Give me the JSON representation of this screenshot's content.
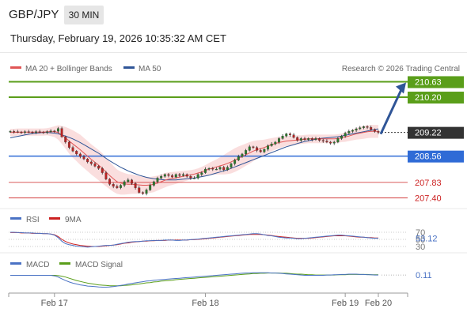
{
  "header": {
    "symbol": "GBP/JPY",
    "timeframe": "30 MIN",
    "datetime": "Thursday, February 19, 2026 10:35:32 AM CET"
  },
  "legend": {
    "ma20_label": "MA 20 + Bollinger Bands",
    "ma50_label": "MA 50",
    "ma20_color": "#e05555",
    "ma50_color": "#2f5597",
    "credit": "Research © 2026 Trading Central"
  },
  "chart_data": {
    "type": "line",
    "ylim": [
      207.3,
      210.75
    ],
    "x_ticks": [
      "Feb 17",
      "Feb 18",
      "Feb 19",
      "Feb 20"
    ],
    "price_series": {
      "close": [
        209.25,
        209.24,
        209.23,
        209.22,
        209.24,
        209.23,
        209.22,
        209.24,
        209.23,
        209.22,
        209.24,
        209.26,
        209.25,
        209.33,
        209.1,
        208.95,
        208.8,
        208.7,
        208.62,
        208.55,
        208.48,
        208.4,
        208.35,
        208.28,
        208.22,
        208.1,
        207.92,
        207.78,
        207.72,
        207.68,
        207.75,
        207.85,
        207.9,
        207.8,
        207.68,
        207.55,
        207.52,
        207.62,
        207.75,
        207.85,
        207.95,
        208.0,
        208.05,
        208.02,
        207.98,
        208.05,
        208.02,
        208.05,
        208.0,
        207.95,
        207.95,
        208.05,
        208.1,
        208.2,
        208.22,
        208.2,
        208.2,
        208.25,
        208.18,
        208.25,
        208.35,
        208.45,
        208.55,
        208.62,
        208.72,
        208.82,
        208.8,
        208.72,
        208.68,
        208.75,
        208.85,
        208.9,
        208.95,
        209.05,
        209.12,
        209.18,
        209.15,
        209.08,
        209.0,
        209.05,
        209.02,
        209.05,
        209.02,
        209.05,
        209.0,
        208.98,
        208.95,
        208.92,
        208.95,
        209.05,
        209.12,
        209.2,
        209.25,
        209.28,
        209.32,
        209.35,
        209.38,
        209.36,
        209.3,
        209.25,
        209.22
      ],
      "ma20": [
        209.22,
        209.22,
        209.23,
        209.23,
        209.23,
        209.23,
        209.23,
        209.23,
        209.23,
        209.23,
        209.24,
        209.24,
        209.24,
        209.22,
        209.15,
        209.07,
        208.98,
        208.9,
        208.82,
        208.74,
        208.65,
        208.56,
        208.47,
        208.39,
        208.31,
        208.22,
        208.12,
        208.02,
        207.93,
        207.85,
        207.81,
        207.79,
        207.78,
        207.78,
        207.77,
        207.76,
        207.75,
        207.75,
        207.76,
        207.78,
        207.81,
        207.85,
        207.89,
        207.92,
        207.94,
        207.96,
        207.98,
        208.0,
        208.02,
        208.04,
        208.06,
        208.09,
        208.12,
        208.16,
        208.2,
        208.23,
        208.26,
        208.29,
        208.32,
        208.36,
        208.4,
        208.45,
        208.5,
        208.55,
        208.6,
        208.65,
        208.7,
        208.74,
        208.77,
        208.8,
        208.84,
        208.88,
        208.91,
        208.94,
        208.96,
        208.98,
        208.99,
        209.0,
        209.01,
        209.02,
        209.03,
        209.04,
        209.04,
        209.04,
        209.04,
        209.04,
        209.04,
        209.04,
        209.04,
        209.05,
        209.07,
        209.09,
        209.12,
        209.15,
        209.18,
        209.2,
        209.22,
        209.24,
        209.25,
        209.25,
        209.25
      ],
      "ma50": [
        209.07,
        209.09,
        209.11,
        209.13,
        209.15,
        209.17,
        209.19,
        209.2,
        209.21,
        209.22,
        209.22,
        209.21,
        209.2,
        209.18,
        209.15,
        209.12,
        209.08,
        209.04,
        208.99,
        208.94,
        208.88,
        208.82,
        208.76,
        208.7,
        208.64,
        208.57,
        208.5,
        208.43,
        208.37,
        208.31,
        208.25,
        208.2,
        208.15,
        208.11,
        208.07,
        208.03,
        208.0,
        207.97,
        207.95,
        207.93,
        207.92,
        207.91,
        207.9,
        207.9,
        207.9,
        207.9,
        207.91,
        207.92,
        207.93,
        207.94,
        207.95,
        207.97,
        207.99,
        208.01,
        208.03,
        208.06,
        208.09,
        208.12,
        208.15,
        208.18,
        208.22,
        208.26,
        208.3,
        208.34,
        208.38,
        208.42,
        208.46,
        208.5,
        208.54,
        208.58,
        208.62,
        208.66,
        208.7,
        208.74,
        208.78,
        208.82,
        208.85,
        208.88,
        208.91,
        208.94,
        208.97,
        208.99,
        209.01,
        209.03,
        209.05,
        209.06,
        209.07,
        209.08,
        209.09,
        209.1,
        209.12,
        209.14,
        209.16,
        209.18,
        209.2,
        209.22,
        209.24,
        209.26,
        209.28,
        209.3,
        209.32
      ],
      "bb_width": [
        0.1,
        0.1,
        0.1,
        0.1,
        0.1,
        0.1,
        0.1,
        0.1,
        0.1,
        0.1,
        0.1,
        0.12,
        0.15,
        0.2,
        0.25,
        0.3,
        0.35,
        0.38,
        0.4,
        0.42,
        0.42,
        0.42,
        0.42,
        0.42,
        0.42,
        0.42,
        0.4,
        0.38,
        0.36,
        0.34,
        0.32,
        0.3,
        0.28,
        0.27,
        0.26,
        0.25,
        0.24,
        0.23,
        0.22,
        0.22,
        0.21,
        0.2,
        0.2,
        0.19,
        0.18,
        0.17,
        0.16,
        0.15,
        0.14,
        0.13,
        0.13,
        0.13,
        0.14,
        0.15,
        0.17,
        0.19,
        0.21,
        0.24,
        0.27,
        0.3,
        0.32,
        0.33,
        0.33,
        0.32,
        0.31,
        0.3,
        0.28,
        0.26,
        0.24,
        0.22,
        0.2,
        0.18,
        0.17,
        0.16,
        0.15,
        0.14,
        0.13,
        0.13,
        0.13,
        0.12,
        0.12,
        0.12,
        0.12,
        0.12,
        0.12,
        0.12,
        0.12,
        0.12,
        0.12,
        0.12,
        0.12,
        0.13,
        0.14,
        0.15,
        0.16,
        0.17,
        0.18,
        0.18,
        0.18,
        0.18,
        0.18
      ]
    },
    "levels": [
      {
        "value": 210.63,
        "label": "210.63",
        "kind": "resistance",
        "color": "#5a9e1a"
      },
      {
        "value": 210.2,
        "label": "210.20",
        "kind": "resistance",
        "color": "#5a9e1a"
      },
      {
        "value": 209.22,
        "label": "209.22",
        "kind": "last",
        "color": "#333333"
      },
      {
        "value": 208.56,
        "label": "208.56",
        "kind": "pivot",
        "color": "#2f6bd6"
      },
      {
        "value": 207.83,
        "label": "207.83",
        "kind": "support",
        "color": "#cc2222"
      },
      {
        "value": 207.4,
        "label": "207.40",
        "kind": "support",
        "color": "#cc2222"
      }
    ],
    "arrow": {
      "from": 209.22,
      "to": 210.63,
      "color": "#2f5597"
    },
    "rsi": {
      "label": "RSI",
      "ma_label": "9MA",
      "rsi_color": "#4a72c4",
      "ma_color": "#cc2222",
      "levels": [
        "70",
        "50",
        "30"
      ],
      "last": "53.12",
      "values": [
        70,
        70,
        69,
        69,
        68,
        68,
        68,
        67,
        67,
        66,
        66,
        65,
        62,
        55,
        45,
        38,
        35,
        33,
        31,
        30,
        29,
        28,
        29,
        30,
        31,
        32,
        33,
        33,
        34,
        36,
        38,
        40,
        42,
        43,
        44,
        44,
        45,
        46,
        46,
        47,
        47,
        47,
        48,
        48,
        48,
        47,
        47,
        48,
        48,
        49,
        50,
        51,
        52,
        53,
        54,
        55,
        56,
        57,
        58,
        59,
        60,
        61,
        62,
        63,
        64,
        65,
        66,
        66,
        65,
        63,
        61,
        60,
        58,
        56,
        55,
        54,
        54,
        53,
        52,
        52,
        53,
        54,
        55,
        56,
        57,
        58,
        59,
        60,
        61,
        62,
        62,
        61,
        60,
        59,
        58,
        57,
        56,
        55,
        54,
        53,
        53.12
      ],
      "ma": [
        69,
        69,
        69,
        68,
        68,
        68,
        67,
        67,
        67,
        66,
        66,
        65,
        63,
        58,
        50,
        44,
        40,
        37,
        35,
        33,
        32,
        31,
        30,
        30,
        30,
        31,
        32,
        33,
        34,
        35,
        37,
        39,
        40,
        42,
        43,
        44,
        45,
        45,
        46,
        46,
        47,
        47,
        47,
        48,
        48,
        48,
        48,
        48,
        48,
        49,
        49,
        50,
        51,
        52,
        53,
        54,
        55,
        56,
        57,
        58,
        59,
        60,
        61,
        62,
        63,
        64,
        64,
        64,
        64,
        63,
        62,
        61,
        59,
        58,
        57,
        56,
        55,
        54,
        53,
        53,
        53,
        53,
        54,
        55,
        56,
        57,
        58,
        59,
        60,
        60,
        60,
        60,
        59,
        58,
        57,
        56,
        56,
        55,
        55,
        54,
        54
      ]
    },
    "macd": {
      "label": "MACD",
      "signal_label": "MACD Signal",
      "macd_color": "#4a72c4",
      "signal_color": "#5a9e1a",
      "last": "0.11",
      "values": [
        0.1,
        0.1,
        0.1,
        0.1,
        0.1,
        0.1,
        0.1,
        0.1,
        0.1,
        0.1,
        0.1,
        0.1,
        0.08,
        0.04,
        -0.02,
        -0.08,
        -0.13,
        -0.17,
        -0.2,
        -0.23,
        -0.25,
        -0.27,
        -0.28,
        -0.29,
        -0.3,
        -0.31,
        -0.31,
        -0.3,
        -0.29,
        -0.27,
        -0.25,
        -0.23,
        -0.2,
        -0.18,
        -0.16,
        -0.14,
        -0.12,
        -0.1,
        -0.09,
        -0.07,
        -0.06,
        -0.05,
        -0.04,
        -0.03,
        -0.02,
        -0.01,
        0.0,
        0.01,
        0.02,
        0.03,
        0.04,
        0.05,
        0.06,
        0.07,
        0.08,
        0.09,
        0.1,
        0.11,
        0.12,
        0.13,
        0.14,
        0.15,
        0.16,
        0.17,
        0.18,
        0.18,
        0.19,
        0.19,
        0.19,
        0.19,
        0.19,
        0.18,
        0.18,
        0.17,
        0.16,
        0.15,
        0.14,
        0.13,
        0.12,
        0.11,
        0.1,
        0.1,
        0.1,
        0.1,
        0.1,
        0.1,
        0.11,
        0.11,
        0.12,
        0.12,
        0.13,
        0.13,
        0.14,
        0.14,
        0.14,
        0.13,
        0.13,
        0.12,
        0.12,
        0.11,
        0.11
      ],
      "signal": [
        0.1,
        0.1,
        0.1,
        0.1,
        0.1,
        0.1,
        0.1,
        0.1,
        0.1,
        0.1,
        0.1,
        0.1,
        0.1,
        0.09,
        0.07,
        0.04,
        0.0,
        -0.04,
        -0.08,
        -0.11,
        -0.14,
        -0.17,
        -0.19,
        -0.21,
        -0.23,
        -0.24,
        -0.25,
        -0.26,
        -0.26,
        -0.26,
        -0.26,
        -0.25,
        -0.24,
        -0.23,
        -0.21,
        -0.2,
        -0.18,
        -0.16,
        -0.15,
        -0.13,
        -0.12,
        -0.1,
        -0.09,
        -0.08,
        -0.07,
        -0.05,
        -0.04,
        -0.03,
        -0.02,
        -0.01,
        0.0,
        0.01,
        0.02,
        0.03,
        0.04,
        0.05,
        0.06,
        0.07,
        0.08,
        0.09,
        0.1,
        0.11,
        0.12,
        0.13,
        0.14,
        0.15,
        0.16,
        0.16,
        0.17,
        0.17,
        0.18,
        0.18,
        0.18,
        0.18,
        0.17,
        0.17,
        0.16,
        0.15,
        0.14,
        0.14,
        0.13,
        0.12,
        0.12,
        0.11,
        0.11,
        0.11,
        0.11,
        0.11,
        0.11,
        0.12,
        0.12,
        0.12,
        0.13,
        0.13,
        0.13,
        0.13,
        0.13,
        0.13,
        0.12,
        0.12,
        0.12
      ]
    }
  }
}
